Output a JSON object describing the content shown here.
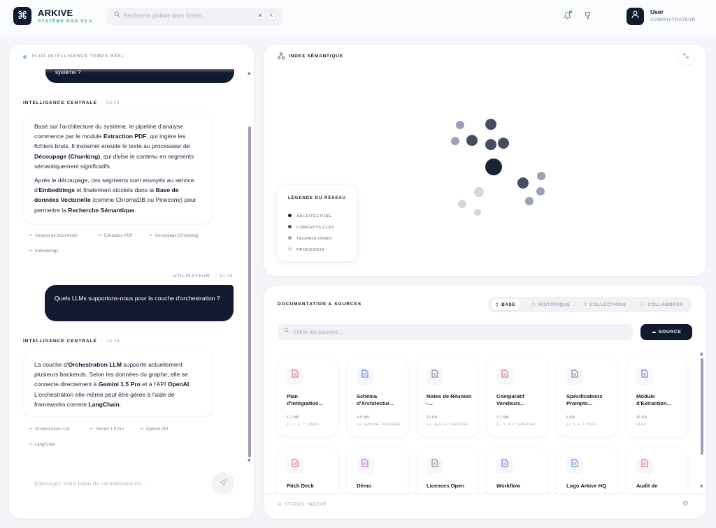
{
  "app": {
    "logo_glyph": "⌘",
    "brand": "ARKIVE",
    "subtitle": "SYSTÈME RAG V2.1",
    "accent_color": "#3fae86",
    "dark_color": "#111a2e"
  },
  "search": {
    "placeholder": "Recherche globale dans l'index...",
    "shortcut": [
      "⌘",
      "K"
    ]
  },
  "header_icons": [
    "bell-icon",
    "pin-icon"
  ],
  "user": {
    "name": "User",
    "role": "ADMINISTRATEUR"
  },
  "chat": {
    "header": "FLUX INTELLIGENCE TEMPS RÉEL",
    "cut_message": "système ?",
    "messages": [
      {
        "role": "INTELLIGENCE CENTRALE",
        "time": "10:24",
        "paragraphs": [
          [
            {
              "t": "Basé sur l'architecture du système, le pipeline d'analyse commence par le module "
            },
            {
              "b": "Extraction PDF"
            },
            {
              "t": ", qui ingère les fichiers bruts. Il transmet ensuite le texte au processeur de "
            },
            {
              "b": "Découpage (Chunking)"
            },
            {
              "t": ", qui divise le contenu en segments sémantiquement significatifs."
            }
          ],
          [
            {
              "t": "Après le découpage, ces segments sont envoyés au service d'"
            },
            {
              "b": "Embeddings"
            },
            {
              "t": " et finalement stockés dans la "
            },
            {
              "b": "Base de données Vectorielle"
            },
            {
              "t": " (comme ChromaDB ou Pinecone) pour permettre la "
            },
            {
              "b": "Recherche Sémantique"
            },
            {
              "t": "."
            }
          ]
        ],
        "tags": [
          "Analyse de documents",
          "Extraction PDF",
          "Découpage (Chunking)",
          "Embeddings"
        ]
      },
      {
        "role": "UTILISATEUR",
        "time": "10:26",
        "text": "Quels LLMs supportons-nous pour la couche d'orchestration ?"
      },
      {
        "role": "INTELLIGENCE CENTRALE",
        "time": "10:26",
        "paragraphs": [
          [
            {
              "t": "La couche d'"
            },
            {
              "b": "Orchestration LLM"
            },
            {
              "t": " supporte actuellement plusieurs backends. Selon les données du graphe, elle se connecte directement à "
            },
            {
              "b": "Gemini 1.5 Pro"
            },
            {
              "t": " et à l'API "
            },
            {
              "b": "OpenAI"
            },
            {
              "t": ". L'orchestration elle-même peut être gérée à l'aide de frameworks comme "
            },
            {
              "b": "LangChain"
            },
            {
              "t": "."
            }
          ]
        ],
        "tags": [
          "Orchestration LLM",
          "Gemini 1.5 Pro",
          "OpenAI API",
          "LangChain"
        ]
      }
    ],
    "input_placeholder": "Interrogez votre base de connaissances..."
  },
  "index": {
    "title": "INDEX SÉMANTIQUE",
    "legend_title": "LÉGENDE DU RÉSEAU",
    "legend": [
      {
        "label": "ARCHITECTURE",
        "color": "#1a2133"
      },
      {
        "label": "CONCEPTS CLÉS",
        "color": "#454d61"
      },
      {
        "label": "TECHNOLOGIES",
        "color": "#9aa1b2"
      },
      {
        "label": "PROCESSUS",
        "color": "#d3d7e0"
      }
    ],
    "nodes": [
      {
        "category": "ARCHITECTURE"
      },
      {
        "category": "CONCEPTS CLÉS"
      },
      {
        "category": "CONCEPTS CLÉS"
      },
      {
        "category": "CONCEPTS CLÉS"
      },
      {
        "category": "CONCEPTS CLÉS"
      },
      {
        "category": "CONCEPTS CLÉS"
      },
      {
        "category": "TECHNOLOGIES"
      },
      {
        "category": "TECHNOLOGIES"
      },
      {
        "category": "TECHNOLOGIES"
      },
      {
        "category": "TECHNOLOGIES"
      },
      {
        "category": "TECHNOLOGIES"
      },
      {
        "category": "PROCESSUS"
      },
      {
        "category": "PROCESSUS"
      },
      {
        "category": "PROCESSUS"
      }
    ]
  },
  "docs": {
    "title": "DOCUMENTATION & SOURCES",
    "tabs": [
      {
        "label": "BASE",
        "icon": "book-icon",
        "glyph": "▯",
        "active": true
      },
      {
        "label": "HISTORIQUE",
        "icon": "clock-icon",
        "glyph": "◷",
        "active": false
      },
      {
        "label": "COLLECTIONS",
        "icon": "library-icon",
        "glyph": "⫴",
        "active": false
      },
      {
        "label": "COLLABORER",
        "icon": "users-icon",
        "glyph": "⚇",
        "active": false
      }
    ],
    "filter_placeholder": "Filtrer les sources...",
    "source_button": "SOURCE",
    "cards": [
      {
        "name": "Plan d'Intégration...",
        "size": "1.2 MB",
        "date": "IL Y A 2 JOURS",
        "icon": "pdf-file-icon",
        "color": "#e05a5a"
      },
      {
        "name": "Schéma d'Architectur...",
        "size": "4.5 MB",
        "date": "LA SEMAINE DERNIÈRE",
        "icon": "image-file-icon",
        "color": "#3b7dd8"
      },
      {
        "name": "Notes de Réunion -...",
        "size": "12 KB",
        "date": "LA VEILLE DERNIÈRE",
        "icon": "text-file-icon",
        "color": "#6b7385"
      },
      {
        "name": "Comparatif Vendeurs...",
        "size": "3.1 MB",
        "date": "IL Y A 2 SEMAINES",
        "icon": "pdf-file-icon",
        "color": "#e05a5a"
      },
      {
        "name": "Spécifications Prompts...",
        "size": "8 KB",
        "date": "IL Y A 1 MOIS",
        "icon": "text-file-icon",
        "color": "#6b7385"
      },
      {
        "name": "Module d'Extraction...",
        "size": "45 KB",
        "date": "HIER",
        "icon": "code-file-icon",
        "color": "#6a5acd"
      },
      {
        "name": "Pitch Deck",
        "size": "",
        "date": "",
        "icon": "pdf-file-icon",
        "color": "#e05a5a"
      },
      {
        "name": "Démo",
        "size": "",
        "date": "",
        "icon": "video-file-icon",
        "color": "#b04fd0"
      },
      {
        "name": "Licences Open",
        "size": "",
        "date": "",
        "icon": "text-file-icon",
        "color": "#6b7385"
      },
      {
        "name": "Workflow",
        "size": "",
        "date": "",
        "icon": "code-file-icon",
        "color": "#6a5acd"
      },
      {
        "name": "Logo Arkive HQ",
        "size": "",
        "date": "",
        "icon": "image-file-icon",
        "color": "#3b7dd8"
      },
      {
        "name": "Audit de",
        "size": "",
        "date": "",
        "icon": "pdf-file-icon",
        "color": "#e05a5a"
      }
    ],
    "status": "STATUS: INDEXÉ"
  }
}
